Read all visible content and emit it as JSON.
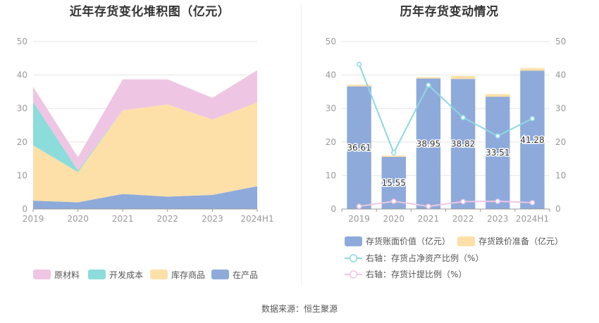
{
  "source_text": "数据来源：恒生聚源",
  "chart_data": [
    {
      "type": "area",
      "stacked": true,
      "title": "近年存货变化堆积图（亿元）",
      "categories": [
        "2019",
        "2020",
        "2021",
        "2022",
        "2023",
        "2024H1"
      ],
      "ylim": [
        0,
        50
      ],
      "yticks": [
        0,
        10,
        20,
        30,
        40,
        50
      ],
      "grid": true,
      "legend_position": "bottom",
      "series": [
        {
          "name": "在产品",
          "color": "#8eaadb",
          "values": [
            2.5,
            2.0,
            4.5,
            3.7,
            4.2,
            6.8
          ]
        },
        {
          "name": "库存商品",
          "color": "#fde0a8",
          "values": [
            16.5,
            9.0,
            25.0,
            27.5,
            22.5,
            25.0
          ]
        },
        {
          "name": "开发成本",
          "color": "#8ddcdc",
          "values": [
            13.0,
            0.5,
            0.0,
            0.0,
            0.0,
            0.0
          ]
        },
        {
          "name": "原材料",
          "color": "#eec6e3",
          "values": [
            4.5,
            4.0,
            9.2,
            7.5,
            6.5,
            9.6
          ]
        }
      ],
      "legend_order": [
        "原材料",
        "开发成本",
        "库存商品",
        "在产品"
      ]
    },
    {
      "type": "bar",
      "title": "历年存货变动情况",
      "categories": [
        "2019",
        "2020",
        "2021",
        "2022",
        "2023",
        "2024H1"
      ],
      "ylim": [
        0,
        50
      ],
      "y2lim": [
        0,
        50
      ],
      "yticks": [
        0,
        10,
        20,
        30,
        40,
        50
      ],
      "grid": true,
      "legend_position": "bottom",
      "bar_series": [
        {
          "name": "存货账面价值（亿元）",
          "color": "#8eaadb",
          "values": [
            36.61,
            15.55,
            38.95,
            38.82,
            33.51,
            41.28
          ],
          "labels": [
            "36.61",
            "15.55",
            "38.95",
            "38.82",
            "33.51",
            "41.28"
          ]
        },
        {
          "name": "存货跌价准备（亿元）",
          "color": "#fde0a8",
          "values": [
            0.5,
            0.4,
            0.4,
            0.9,
            0.8,
            0.8
          ]
        }
      ],
      "line_series": [
        {
          "name": "右轴：存货占净资产比例（%）",
          "color": "#8ed8e0",
          "axis": "right",
          "values": [
            43.2,
            16.8,
            37.0,
            27.3,
            21.8,
            27.0
          ]
        },
        {
          "name": "右轴：存货计提比例（%）",
          "color": "#eec6e3",
          "axis": "right",
          "values": [
            0.8,
            2.3,
            0.8,
            2.2,
            2.3,
            1.9
          ]
        }
      ]
    }
  ]
}
